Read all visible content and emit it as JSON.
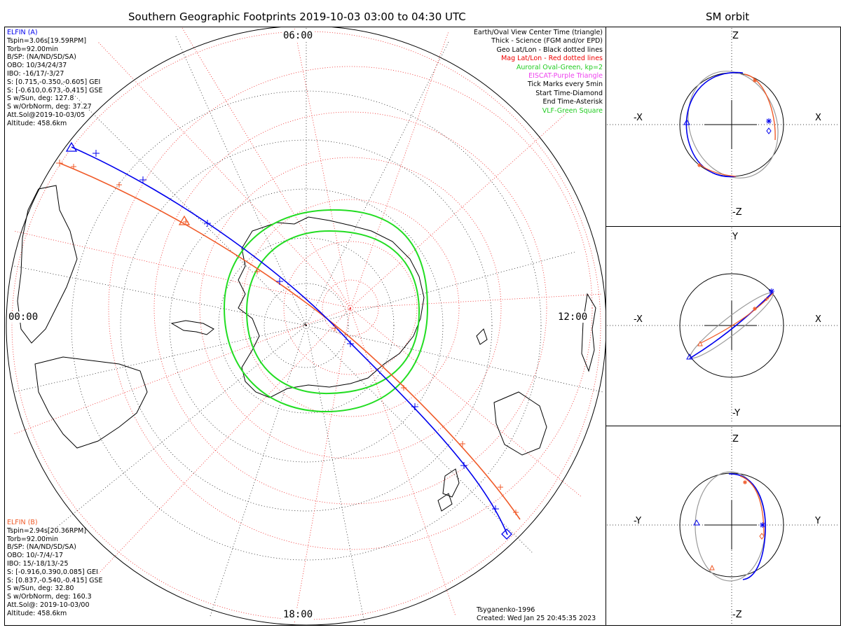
{
  "header": {
    "main_title": "Southern Geographic Footprints 2019-10-03 03:00 to 04:30 UTC",
    "orbit_title": "SM orbit"
  },
  "elfin_a": {
    "name": "ELFIN (A)",
    "color": "#0000ee",
    "lines": [
      "Tspin=3.06s[19.59RPM]",
      "Torb=92.00min",
      "B/SP: (NA/ND/SD/SA)",
      "OBO: 10/34/24/37",
      "IBO: -16/17/-3/27",
      "S: [0.715,-0.350,-0.605] GEI",
      "S: [-0.610,0.673,-0.415] GSE",
      "S w/Sun, deg: 127.8",
      "S w/OrbNorm, deg: 37.27",
      "Att.Sol@2019-10-03/05",
      "Altitude: 458.6km"
    ]
  },
  "elfin_b": {
    "name": "ELFIN (B)",
    "color": "#f05a28",
    "lines": [
      "Tspin=2.94s[20.36RPM]",
      "Torb=92.00min",
      "B/SP: (NA/ND/SD/SA)",
      "OBO: 10/-7/4/-17",
      "IBO: 15/-18/13/-25",
      "S: [-0.916,0.390,0.085] GEI",
      "S: [0.837,-0.540,-0.415] GSE",
      "S w/Sun, deg: 32.80",
      "S w/OrbNorm, deg: 160.3",
      "Att.Sol@: 2019-10-03/00",
      "Altitude: 458.6km"
    ]
  },
  "legend": [
    {
      "text": "Earth/Oval View Center Time (triangle)",
      "color": "#000000"
    },
    {
      "text": "Thick - Science (FGM and/or EPD)",
      "color": "#000000"
    },
    {
      "text": "Geo Lat/Lon - Black dotted lines",
      "color": "#000000"
    },
    {
      "text": "Mag Lat/Lon - Red dotted lines",
      "color": "#ee0000"
    },
    {
      "text": "Auroral Oval-Green, kp=2",
      "color": "#22cc22"
    },
    {
      "text": "EISCAT-Purple Triangle",
      "color": "#ee44ee"
    },
    {
      "text": "Tick Marks every 5min",
      "color": "#000000"
    },
    {
      "text": "Start Time-Diamond",
      "color": "#000000"
    },
    {
      "text": "End Time-Asterisk",
      "color": "#000000"
    },
    {
      "text": "VLF-Green Square",
      "color": "#22cc22"
    }
  ],
  "mlt_labels": {
    "top": "06:00",
    "left": "00:00",
    "right": "12:00",
    "bottom": "18:00"
  },
  "footer": {
    "model": "Tsyganenko-1996",
    "created": "Created: Wed Jan 25 20:45:35 2023"
  },
  "orbit_panels": [
    {
      "up": "Z",
      "down": "-Z",
      "left": "-X",
      "right": "X"
    },
    {
      "up": "Y",
      "down": "-Y",
      "left": "-X",
      "right": "X"
    },
    {
      "up": "Z",
      "down": "-Z",
      "left": "-Y",
      "right": "Y"
    }
  ],
  "colors": {
    "elfin_a": "#0000ee",
    "elfin_b": "#f05a28",
    "oval": "#22dd22",
    "mag_grid": "#ee2222",
    "geo_grid": "#000000",
    "earth_track": "#9a9a9a"
  }
}
